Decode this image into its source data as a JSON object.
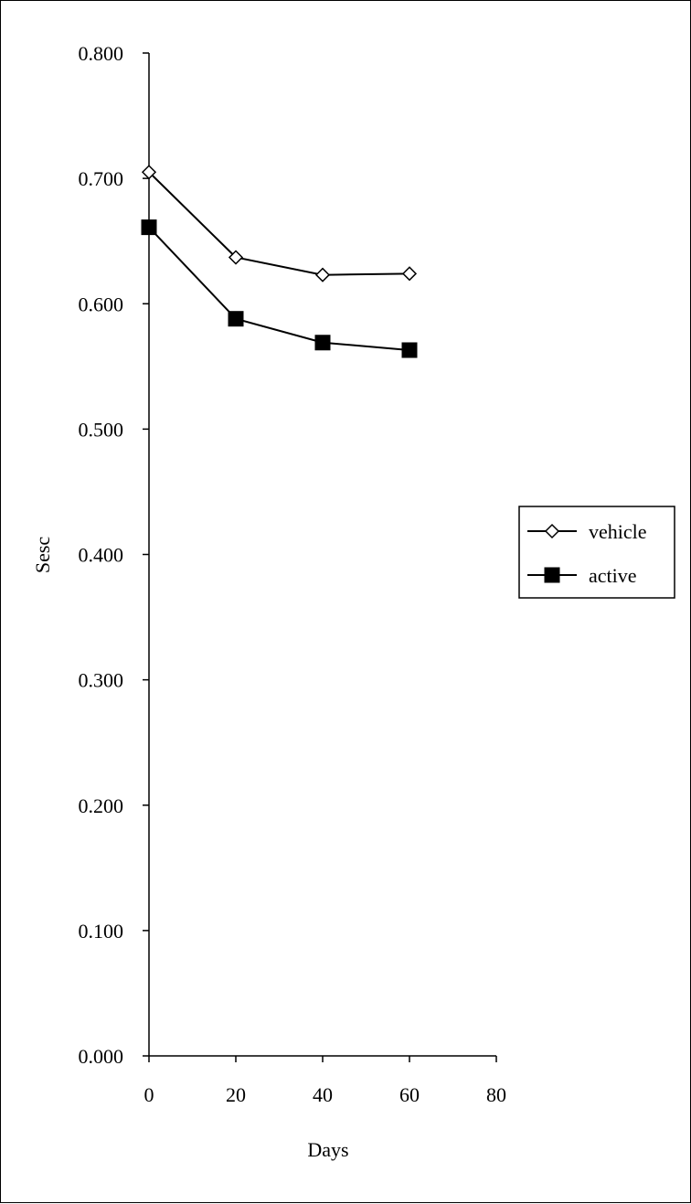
{
  "chart_data": {
    "type": "line",
    "title": "",
    "xlabel": "Days",
    "ylabel": "Sesc",
    "xlim": [
      0,
      80
    ],
    "ylim": [
      0,
      0.8
    ],
    "x_ticks": [
      "0",
      "20",
      "40",
      "60",
      "80"
    ],
    "y_ticks": [
      "0.000",
      "0.100",
      "0.200",
      "0.300",
      "0.400",
      "0.500",
      "0.600",
      "0.700",
      "0.800"
    ],
    "grid": false,
    "legend_position": "right",
    "series": [
      {
        "name": "vehicle",
        "marker": "open-diamond",
        "color": "#000000",
        "x": [
          0,
          20,
          40,
          60
        ],
        "y": [
          0.705,
          0.637,
          0.623,
          0.624
        ]
      },
      {
        "name": "active",
        "marker": "filled-square",
        "color": "#000000",
        "x": [
          0,
          20,
          40,
          60
        ],
        "y": [
          0.661,
          0.588,
          0.569,
          0.563
        ]
      }
    ]
  }
}
